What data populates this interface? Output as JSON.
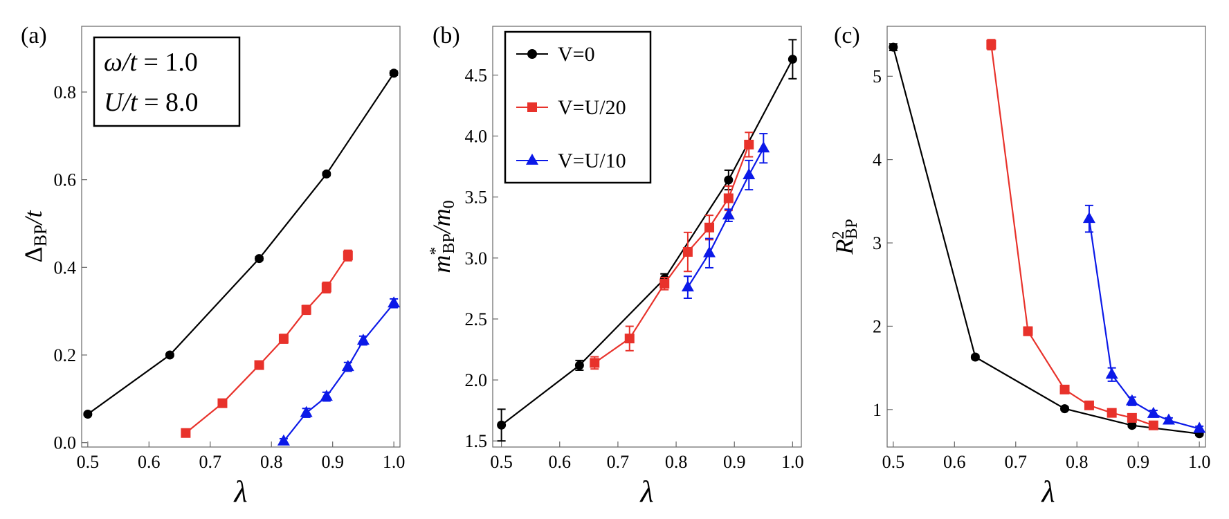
{
  "chart_data": [
    {
      "type": "line",
      "panel_label": "(a)",
      "xlabel": "λ",
      "ylabel": "Δ_BP/t",
      "ylabel_parts": {
        "main": "Δ",
        "sub": "BP",
        "tail": "/t"
      },
      "xlim": [
        0.49,
        1.01
      ],
      "ylim": [
        -0.01,
        0.95
      ],
      "xticks": [
        0.5,
        0.6,
        0.7,
        0.8,
        0.9,
        1.0
      ],
      "xtick_labels": [
        "0.5",
        "0.6",
        "0.7",
        "0.8",
        "0.9",
        "1.0"
      ],
      "yticks": [
        0.0,
        0.2,
        0.4,
        0.6,
        0.8
      ],
      "ytick_labels": [
        "0.0",
        "0.2",
        "0.4",
        "0.6",
        "0.8"
      ],
      "params": [
        {
          "lhs": "ω/t",
          "rhs": "1.0",
          "text": "ω/t = 1.0"
        },
        {
          "lhs": "U/t",
          "rhs": "8.0",
          "text": "U/t = 8.0"
        }
      ],
      "series": [
        {
          "name": "V=0",
          "color": "#000000",
          "marker": "circle",
          "x": [
            0.5,
            0.634,
            0.78,
            0.89,
            1.0
          ],
          "y": [
            0.065,
            0.2,
            0.42,
            0.613,
            0.843
          ],
          "err": [
            0.003,
            0.003,
            0.004,
            0.004,
            0.005
          ]
        },
        {
          "name": "V=U/20",
          "color": "#e8322b",
          "marker": "square",
          "x": [
            0.66,
            0.72,
            0.78,
            0.82,
            0.857,
            0.89,
            0.925
          ],
          "y": [
            0.022,
            0.09,
            0.177,
            0.237,
            0.303,
            0.354,
            0.427
          ],
          "err": [
            0.008,
            0.008,
            0.008,
            0.01,
            0.01,
            0.012,
            0.012
          ]
        },
        {
          "name": "V=U/10",
          "color": "#0b19e8",
          "marker": "triangle",
          "x": [
            0.82,
            0.857,
            0.89,
            0.925,
            0.95,
            1.0
          ],
          "y": [
            0.003,
            0.068,
            0.105,
            0.173,
            0.233,
            0.318
          ],
          "err": [
            0.006,
            0.01,
            0.01,
            0.01,
            0.01,
            0.01
          ]
        }
      ]
    },
    {
      "type": "line",
      "panel_label": "(b)",
      "xlabel": "λ",
      "ylabel": "m*_BP/m_0",
      "ylabel_parts": {
        "main": "m",
        "sup": "*",
        "sub": "BP",
        "tail_main": "/m",
        "tail_sub": "0"
      },
      "xlim": [
        0.485,
        1.015
      ],
      "ylim": [
        1.45,
        4.9
      ],
      "xticks": [
        0.5,
        0.6,
        0.7,
        0.8,
        0.9,
        1.0
      ],
      "xtick_labels": [
        "0.5",
        "0.6",
        "0.7",
        "0.8",
        "0.9",
        "1.0"
      ],
      "yticks": [
        1.5,
        2.0,
        2.5,
        3.0,
        3.5,
        4.0,
        4.5
      ],
      "ytick_labels": [
        "1.5",
        "2.0",
        "2.5",
        "3.0",
        "3.5",
        "4.0",
        "4.5"
      ],
      "legend": [
        "V=0",
        "V=U/20",
        "V=U/10"
      ],
      "series": [
        {
          "name": "V=0",
          "color": "#000000",
          "marker": "circle",
          "x": [
            0.5,
            0.634,
            0.78,
            0.89,
            1.0
          ],
          "y": [
            1.63,
            2.12,
            2.83,
            3.64,
            4.63
          ],
          "err": [
            0.13,
            0.04,
            0.04,
            0.08,
            0.16
          ]
        },
        {
          "name": "V=U/20",
          "color": "#e8322b",
          "marker": "square",
          "x": [
            0.66,
            0.72,
            0.78,
            0.82,
            0.857,
            0.89,
            0.925
          ],
          "y": [
            2.14,
            2.34,
            2.79,
            3.05,
            3.25,
            3.49,
            3.93
          ],
          "err": [
            0.05,
            0.1,
            0.05,
            0.16,
            0.1,
            0.1,
            0.1
          ]
        },
        {
          "name": "V=U/10",
          "color": "#0b19e8",
          "marker": "triangle",
          "x": [
            0.82,
            0.857,
            0.89,
            0.925,
            0.95
          ],
          "y": [
            2.76,
            3.04,
            3.35,
            3.68,
            3.9
          ],
          "err": [
            0.09,
            0.12,
            0.05,
            0.12,
            0.12
          ]
        }
      ]
    },
    {
      "type": "line",
      "panel_label": "(c)",
      "xlabel": "λ",
      "ylabel": "R²_BP",
      "ylabel_parts": {
        "main": "R",
        "sup": "2",
        "sub": "BP"
      },
      "xlim": [
        0.49,
        1.01
      ],
      "ylim": [
        0.55,
        5.6
      ],
      "xticks": [
        0.5,
        0.6,
        0.7,
        0.8,
        0.9,
        1.0
      ],
      "xtick_labels": [
        "0.5",
        "0.6",
        "0.7",
        "0.8",
        "0.9",
        "1.0"
      ],
      "yticks": [
        1,
        2,
        3,
        4,
        5
      ],
      "ytick_labels": [
        "1",
        "2",
        "3",
        "4",
        "5"
      ],
      "series": [
        {
          "name": "V=0",
          "color": "#000000",
          "marker": "circle",
          "x": [
            0.5,
            0.634,
            0.78,
            0.89,
            1.0
          ],
          "y": [
            5.35,
            1.63,
            1.01,
            0.81,
            0.71
          ],
          "err": [
            0.04,
            0.02,
            0.02,
            0.02,
            0.02
          ]
        },
        {
          "name": "V=U/20",
          "color": "#e8322b",
          "marker": "square",
          "x": [
            0.66,
            0.72,
            0.78,
            0.82,
            0.857,
            0.89,
            0.925
          ],
          "y": [
            5.38,
            1.94,
            1.24,
            1.05,
            0.96,
            0.9,
            0.81
          ],
          "err": [
            0.06,
            0.05,
            0.04,
            0.04,
            0.04,
            0.03,
            0.03
          ]
        },
        {
          "name": "V=U/10",
          "color": "#0b19e8",
          "marker": "triangle",
          "x": [
            0.82,
            0.857,
            0.89,
            0.925,
            0.95,
            1.0
          ],
          "y": [
            3.29,
            1.42,
            1.1,
            0.95,
            0.87,
            0.77
          ],
          "err": [
            0.16,
            0.08,
            0.05,
            0.04,
            0.03,
            0.03
          ]
        }
      ]
    }
  ]
}
